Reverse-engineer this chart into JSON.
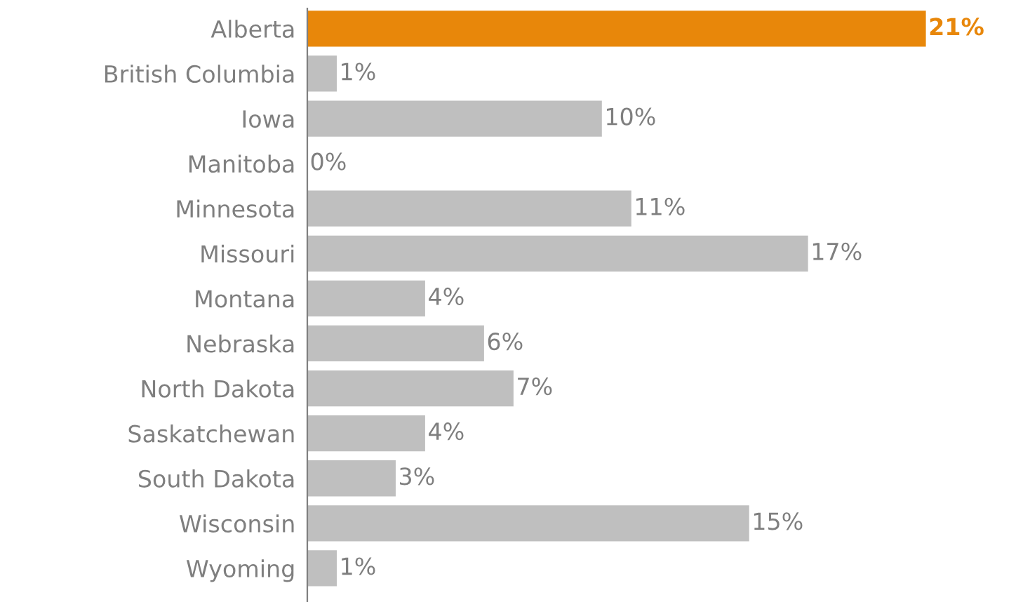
{
  "chart_data": {
    "type": "bar",
    "orientation": "horizontal",
    "categories": [
      "Alberta",
      "British Columbia",
      "Iowa",
      "Manitoba",
      "Minnesota",
      "Missouri",
      "Montana",
      "Nebraska",
      "North Dakota",
      "Saskatchewan",
      "South Dakota",
      "Wisconsin",
      "Wyoming"
    ],
    "values": [
      21,
      1,
      10,
      0,
      11,
      17,
      4,
      6,
      7,
      4,
      3,
      15,
      1
    ],
    "color": "#bfbfbf",
    "colors": [
      "#e8870a",
      "#bfbfbf",
      "#bfbfbf",
      "#bfbfbf",
      "#bfbfbf",
      "#bfbfbf",
      "#bfbfbf",
      "#bfbfbf",
      "#bfbfbf",
      "#bfbfbf",
      "#bfbfbf",
      "#bfbfbf",
      "#bfbfbf"
    ],
    "value_labels": [
      "21%",
      "1%",
      "10%",
      "0%",
      "11%",
      "17%",
      "4%",
      "6%",
      "7%",
      "4%",
      "3%",
      "15%",
      "1%"
    ],
    "grid": false,
    "legend": false
  }
}
